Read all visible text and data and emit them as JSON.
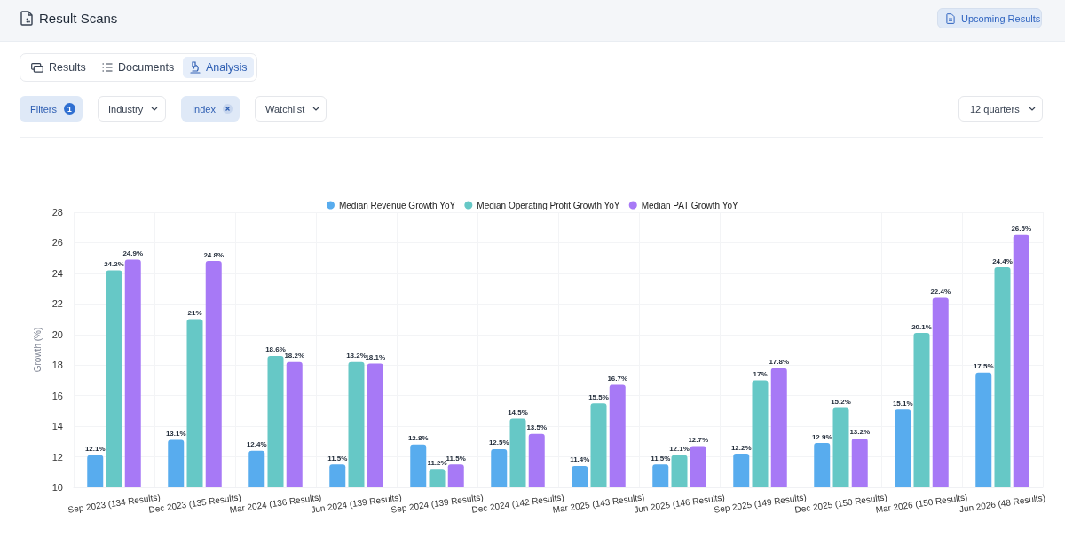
{
  "chart_data": {
    "type": "bar",
    "title": "Result Scans",
    "annotations": [
      "Upcoming Results",
      "Results",
      "Documents",
      "Analysis",
      "Filters",
      "1",
      "Industry",
      "Index",
      "Watchlist",
      "12 quarters"
    ],
    "ylabel": "Growth (%)",
    "categories": [
      "Sep 2023 (134 Results)",
      "Dec 2023 (135 Results)",
      "Mar 2024 (136 Results)",
      "Jun 2024 (139 Results)",
      "Sep 2024 (139 Results)",
      "Dec 2024 (142 Results)",
      "Mar 2025 (143 Results)",
      "Jun 2025 (146 Results)",
      "Sep 2025 (149 Results)",
      "Dec 2025 (150 Results)",
      "Mar 2026 (150 Results)",
      "Jun 2026 (48 Results)"
    ],
    "series": [
      {
        "name": "Median Revenue Growth YoY",
        "color": "#58acee",
        "values": [
          12.1,
          13.1,
          12.4,
          11.5,
          12.8,
          12.5,
          11.4,
          11.5,
          12.2,
          12.9,
          15.1,
          17.5
        ],
        "value_labels": [
          "12.1%",
          "13.1%",
          "12.4%",
          "11.5%",
          "12.8%",
          "12.5%",
          "11.4%",
          "11.5%",
          "12.2%",
          "12.9%",
          "15.1%",
          "17.5%"
        ]
      },
      {
        "name": "Median Operating Profit Growth YoY",
        "color": "#66c8c6",
        "values": [
          24.2,
          21,
          18.6,
          18.2,
          11.2,
          14.5,
          15.5,
          12.1,
          17,
          15.2,
          20.1,
          24.4
        ],
        "value_labels": [
          "24.2%",
          "21%",
          "18.6%",
          "18.2%",
          "11.2%",
          "14.5%",
          "15.5%",
          "12.1%",
          "17%",
          "15.2%",
          "20.1%",
          "24.4%"
        ]
      },
      {
        "name": "Median PAT Growth YoY",
        "color": "#a779f6",
        "values": [
          24.9,
          24.8,
          18.2,
          18.1,
          11.5,
          13.5,
          16.7,
          12.7,
          17.8,
          13.2,
          22.4,
          26.5
        ],
        "value_labels": [
          "24.9%",
          "24.8%",
          "18.2%",
          "18.1%",
          "11.5%",
          "13.5%",
          "16.7%",
          "12.7%",
          "17.8%",
          "13.2%",
          "22.4%",
          "26.5%"
        ]
      }
    ],
    "ylim": [
      10,
      28
    ],
    "yticks": [
      10,
      12,
      14,
      16,
      18,
      20,
      22,
      24,
      26,
      28
    ],
    "grid": true,
    "legend": "top"
  }
}
